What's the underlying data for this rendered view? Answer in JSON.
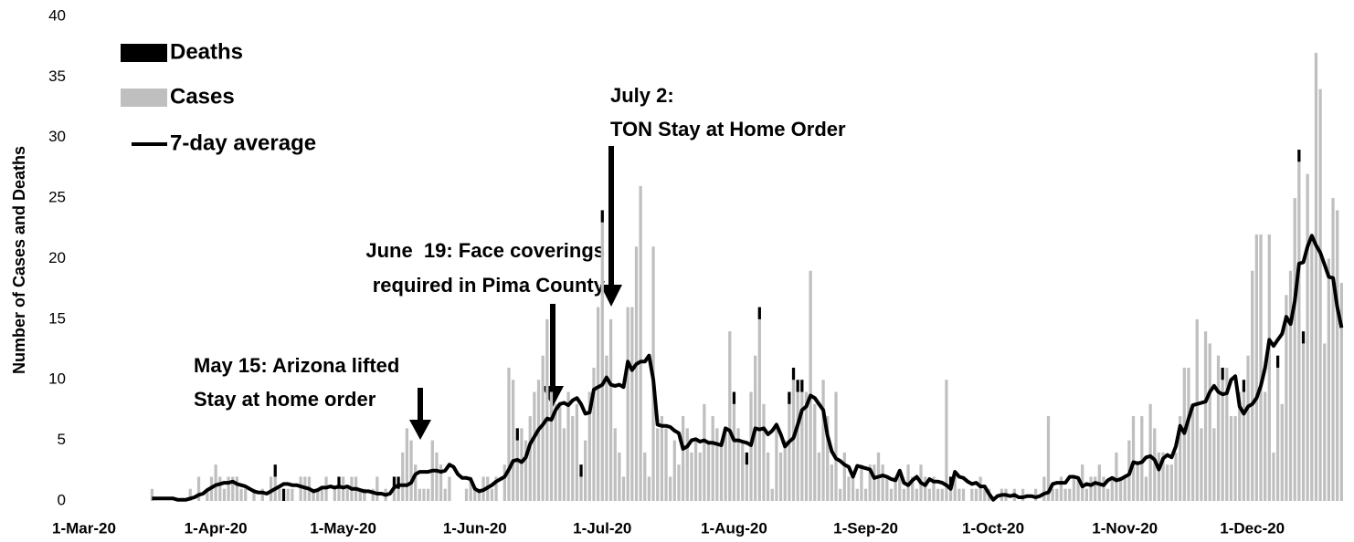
{
  "chart_data": {
    "type": "bar",
    "y_label": "Number of Cases and Deaths",
    "legend": "upper left",
    "ylim": [
      0,
      40
    ],
    "yticks": [
      0,
      5,
      10,
      15,
      20,
      25,
      30,
      35,
      40
    ],
    "xlim": [
      "1-Mar-20",
      "23-Dec-20"
    ],
    "xticks": [
      "1-Mar-20",
      "1-Apr-20",
      "1-May-20",
      "1-Jun-20",
      "1-Jul-20",
      "1-Aug-20",
      "1-Sep-20",
      "1-Oct-20",
      "1-Nov-20",
      "1-Dec-20"
    ],
    "annotations": [
      {
        "text": [
          "May 15: Arizona lifted",
          "Stay at home order"
        ]
      },
      {
        "text": [
          "June  19: Face coverings",
          "required in Pima County"
        ]
      },
      {
        "text": [
          "July 2:",
          "TON Stay at Home Order"
        ]
      }
    ],
    "x": [
      "17-Mar-20",
      "18-Mar-20",
      "19-Mar-20",
      "20-Mar-20",
      "21-Mar-20",
      "22-Mar-20",
      "23-Mar-20",
      "24-Mar-20",
      "25-Mar-20",
      "26-Mar-20",
      "27-Mar-20",
      "28-Mar-20",
      "29-Mar-20",
      "30-Mar-20",
      "31-Mar-20",
      "1-Apr-20",
      "2-Apr-20",
      "3-Apr-20",
      "4-Apr-20",
      "5-Apr-20",
      "6-Apr-20",
      "7-Apr-20",
      "8-Apr-20",
      "9-Apr-20",
      "10-Apr-20",
      "11-Apr-20",
      "12-Apr-20",
      "13-Apr-20",
      "14-Apr-20",
      "15-Apr-20",
      "16-Apr-20",
      "17-Apr-20",
      "18-Apr-20",
      "19-Apr-20",
      "20-Apr-20",
      "21-Apr-20",
      "22-Apr-20",
      "23-Apr-20",
      "24-Apr-20",
      "25-Apr-20",
      "26-Apr-20",
      "27-Apr-20",
      "28-Apr-20",
      "29-Apr-20",
      "30-Apr-20",
      "1-May-20",
      "2-May-20",
      "3-May-20",
      "4-May-20",
      "5-May-20",
      "6-May-20",
      "7-May-20",
      "8-May-20",
      "9-May-20",
      "10-May-20",
      "11-May-20",
      "12-May-20",
      "13-May-20",
      "14-May-20",
      "15-May-20",
      "16-May-20",
      "17-May-20",
      "18-May-20",
      "19-May-20",
      "20-May-20",
      "21-May-20",
      "22-May-20",
      "23-May-20",
      "24-May-20",
      "25-May-20",
      "26-May-20",
      "27-May-20",
      "28-May-20",
      "29-May-20",
      "30-May-20",
      "31-May-20",
      "1-Jun-20",
      "2-Jun-20",
      "3-Jun-20",
      "4-Jun-20",
      "5-Jun-20",
      "6-Jun-20",
      "7-Jun-20",
      "8-Jun-20",
      "9-Jun-20",
      "10-Jun-20",
      "11-Jun-20",
      "12-Jun-20",
      "13-Jun-20",
      "14-Jun-20",
      "15-Jun-20",
      "16-Jun-20",
      "17-Jun-20",
      "18-Jun-20",
      "19-Jun-20",
      "20-Jun-20",
      "21-Jun-20",
      "22-Jun-20",
      "23-Jun-20",
      "24-Jun-20",
      "25-Jun-20",
      "26-Jun-20",
      "27-Jun-20",
      "28-Jun-20",
      "29-Jun-20",
      "30-Jun-20",
      "1-Jul-20",
      "2-Jul-20",
      "3-Jul-20",
      "4-Jul-20",
      "5-Jul-20",
      "6-Jul-20",
      "7-Jul-20",
      "8-Jul-20",
      "9-Jul-20",
      "10-Jul-20",
      "11-Jul-20",
      "12-Jul-20",
      "13-Jul-20",
      "14-Jul-20",
      "15-Jul-20",
      "16-Jul-20",
      "17-Jul-20",
      "18-Jul-20",
      "19-Jul-20",
      "20-Jul-20",
      "21-Jul-20",
      "22-Jul-20",
      "23-Jul-20",
      "24-Jul-20",
      "25-Jul-20",
      "26-Jul-20",
      "27-Jul-20",
      "28-Jul-20",
      "29-Jul-20",
      "30-Jul-20",
      "31-Jul-20",
      "1-Aug-20",
      "2-Aug-20",
      "3-Aug-20",
      "4-Aug-20",
      "5-Aug-20",
      "6-Aug-20",
      "7-Aug-20",
      "8-Aug-20",
      "9-Aug-20",
      "10-Aug-20",
      "11-Aug-20",
      "12-Aug-20",
      "13-Aug-20",
      "14-Aug-20",
      "15-Aug-20",
      "16-Aug-20",
      "17-Aug-20",
      "18-Aug-20",
      "19-Aug-20",
      "20-Aug-20",
      "21-Aug-20",
      "22-Aug-20",
      "23-Aug-20",
      "24-Aug-20",
      "25-Aug-20",
      "26-Aug-20",
      "27-Aug-20",
      "28-Aug-20",
      "29-Aug-20",
      "30-Aug-20",
      "31-Aug-20",
      "1-Sep-20",
      "2-Sep-20",
      "3-Sep-20",
      "4-Sep-20",
      "5-Sep-20",
      "6-Sep-20",
      "7-Sep-20",
      "8-Sep-20",
      "9-Sep-20",
      "10-Sep-20",
      "11-Sep-20",
      "12-Sep-20",
      "13-Sep-20",
      "14-Sep-20",
      "15-Sep-20",
      "16-Sep-20",
      "17-Sep-20",
      "18-Sep-20",
      "19-Sep-20",
      "20-Sep-20",
      "21-Sep-20",
      "22-Sep-20",
      "23-Sep-20",
      "24-Sep-20",
      "25-Sep-20",
      "26-Sep-20",
      "27-Sep-20",
      "28-Sep-20",
      "29-Sep-20",
      "30-Sep-20",
      "1-Oct-20",
      "2-Oct-20",
      "3-Oct-20",
      "4-Oct-20",
      "5-Oct-20",
      "6-Oct-20",
      "7-Oct-20",
      "8-Oct-20",
      "9-Oct-20",
      "10-Oct-20",
      "11-Oct-20",
      "12-Oct-20",
      "13-Oct-20",
      "14-Oct-20",
      "15-Oct-20",
      "16-Oct-20",
      "17-Oct-20",
      "18-Oct-20",
      "19-Oct-20",
      "20-Oct-20",
      "21-Oct-20",
      "22-Oct-20",
      "23-Oct-20",
      "24-Oct-20",
      "25-Oct-20",
      "26-Oct-20",
      "27-Oct-20",
      "28-Oct-20",
      "29-Oct-20",
      "30-Oct-20",
      "31-Oct-20",
      "1-Nov-20",
      "2-Nov-20",
      "3-Nov-20",
      "4-Nov-20",
      "5-Nov-20",
      "6-Nov-20",
      "7-Nov-20",
      "8-Nov-20",
      "9-Nov-20",
      "10-Nov-20",
      "11-Nov-20",
      "12-Nov-20",
      "13-Nov-20",
      "14-Nov-20",
      "15-Nov-20",
      "16-Nov-20",
      "17-Nov-20",
      "18-Nov-20",
      "19-Nov-20",
      "20-Nov-20",
      "21-Nov-20",
      "22-Nov-20",
      "23-Nov-20",
      "24-Nov-20",
      "25-Nov-20",
      "26-Nov-20",
      "27-Nov-20",
      "28-Nov-20",
      "29-Nov-20",
      "30-Nov-20",
      "1-Dec-20",
      "2-Dec-20",
      "3-Dec-20",
      "4-Dec-20",
      "5-Dec-20",
      "6-Dec-20",
      "7-Dec-20",
      "8-Dec-20",
      "9-Dec-20",
      "10-Dec-20",
      "11-Dec-20",
      "12-Dec-20",
      "13-Dec-20",
      "14-Dec-20",
      "15-Dec-20",
      "16-Dec-20",
      "17-Dec-20",
      "18-Dec-20",
      "19-Dec-20",
      "20-Dec-20",
      "21-Dec-20",
      "22-Dec-20"
    ],
    "series": [
      {
        "name": "Deaths",
        "type": "bar",
        "color": "#000000",
        "values": [
          0,
          0,
          0,
          0,
          0,
          0,
          0,
          0,
          0,
          0,
          0,
          0,
          0,
          0,
          0,
          0,
          0,
          0,
          0,
          0,
          0,
          0,
          0,
          0,
          0,
          0,
          0,
          0,
          0,
          1,
          0,
          1,
          0,
          0,
          0,
          0,
          0,
          0,
          0,
          0,
          0,
          0,
          0,
          0,
          1,
          0,
          0,
          0,
          0,
          0,
          0,
          0,
          0,
          0,
          0,
          0,
          0,
          1,
          1,
          0,
          0,
          0,
          0,
          0,
          0,
          0,
          0,
          0,
          0,
          0,
          0,
          0,
          0,
          0,
          0,
          0,
          0,
          0,
          0,
          0,
          0,
          0,
          0,
          0,
          0,
          0,
          1,
          0,
          0,
          0,
          0,
          0,
          0,
          0,
          0,
          0,
          0,
          0,
          0,
          0,
          0,
          1,
          0,
          0,
          0,
          0,
          1,
          0,
          0,
          0,
          0,
          0,
          0,
          0,
          0,
          0,
          0,
          0,
          0,
          0,
          0,
          0,
          0,
          0,
          0,
          0,
          0,
          0,
          0,
          0,
          0,
          0,
          0,
          0,
          0,
          0,
          0,
          1,
          0,
          0,
          1,
          0,
          0,
          1,
          0,
          0,
          0,
          0,
          0,
          0,
          1,
          1,
          1,
          1,
          0,
          0,
          0,
          0,
          0,
          0,
          0,
          0,
          0,
          0,
          0,
          0,
          0,
          0,
          0,
          0,
          0,
          0,
          0,
          0,
          0,
          0,
          0,
          0,
          0,
          0,
          0,
          0,
          0,
          0,
          0,
          0,
          0,
          0,
          1,
          0,
          0,
          0,
          0,
          0,
          0,
          0,
          0,
          0,
          0,
          0,
          0,
          0,
          0,
          0,
          0,
          0,
          0,
          0,
          0,
          0,
          0,
          0,
          0,
          0,
          0,
          0,
          0,
          0,
          0,
          0,
          0,
          0,
          0,
          0,
          0,
          0,
          0,
          0,
          0,
          0,
          0,
          0,
          0,
          0,
          0,
          0,
          0,
          0,
          0,
          0,
          0,
          0,
          0,
          0,
          0,
          0,
          0,
          0,
          0,
          0,
          0,
          0,
          1,
          0,
          0,
          0,
          0,
          1,
          0,
          0,
          0,
          0,
          0,
          0,
          0,
          1,
          0,
          0,
          0,
          0,
          1,
          1,
          0,
          0,
          0,
          0,
          0,
          0,
          0,
          0,
          0
        ]
      },
      {
        "name": "Cases",
        "type": "bar",
        "color": "#bfbfbf",
        "values": [
          1,
          0,
          0,
          0,
          0,
          0,
          0,
          0,
          0,
          1,
          0,
          2,
          0,
          1,
          2,
          3,
          2,
          1,
          2,
          2,
          2,
          1,
          1,
          0,
          1,
          0,
          1,
          0,
          2,
          2,
          1,
          0,
          1,
          1,
          0,
          2,
          2,
          2,
          1,
          1,
          1,
          2,
          0,
          1,
          1,
          2,
          1,
          2,
          2,
          1,
          1,
          0,
          1,
          2,
          0,
          1,
          0,
          1,
          1,
          4,
          6,
          5,
          3,
          1,
          1,
          1,
          5,
          4,
          3,
          1,
          2,
          0,
          0,
          0,
          1,
          2,
          1,
          1,
          2,
          2,
          1,
          2,
          0,
          3,
          11,
          10,
          5,
          6,
          5,
          7,
          9,
          10,
          12,
          15,
          9,
          8,
          8,
          6,
          9,
          7,
          8,
          2,
          5,
          9,
          11,
          16,
          23,
          12,
          15,
          6,
          4,
          2,
          16,
          16,
          21,
          26,
          4,
          2,
          21,
          6,
          7,
          6,
          2,
          5,
          3,
          7,
          6,
          4,
          5,
          4,
          8,
          5,
          7,
          6,
          5,
          6,
          14,
          8,
          6,
          5,
          3,
          9,
          12,
          15,
          8,
          4,
          1,
          6,
          4,
          5,
          8,
          10,
          9,
          9,
          9,
          19,
          8,
          4,
          10,
          7,
          3,
          9,
          1,
          4,
          2,
          2,
          1,
          3,
          1,
          3,
          3,
          4,
          3,
          2,
          1,
          2,
          2,
          1,
          3,
          2,
          1,
          3,
          2,
          1,
          2,
          1,
          1,
          10,
          1,
          2,
          1,
          1,
          0,
          1,
          1,
          2,
          1,
          1,
          0,
          0,
          1,
          1,
          0,
          1,
          0,
          1,
          0,
          0,
          1,
          0,
          2,
          7,
          1,
          1,
          2,
          1,
          1,
          2,
          2,
          3,
          1,
          2,
          2,
          3,
          2,
          1,
          2,
          4,
          2,
          2,
          5,
          7,
          3,
          7,
          2,
          8,
          6,
          4,
          4,
          3,
          3,
          4,
          7,
          11,
          11,
          8,
          15,
          6,
          14,
          13,
          6,
          12,
          10,
          11,
          7,
          7,
          9,
          9,
          12,
          19,
          22,
          22,
          9,
          22,
          4,
          11,
          8,
          17,
          19,
          25,
          28,
          13,
          27,
          22,
          37,
          34,
          13,
          20,
          25,
          24,
          18
        ]
      },
      {
        "name": "7-day average",
        "type": "line",
        "color": "#000000",
        "values": [
          0.2,
          0.2,
          0.2,
          0.2,
          0.2,
          0.2,
          0.1,
          0.1,
          0.1,
          0.2,
          0.3,
          0.5,
          0.6,
          0.9,
          1.1,
          1.3,
          1.4,
          1.5,
          1.5,
          1.6,
          1.4,
          1.3,
          1.2,
          1.0,
          0.8,
          0.7,
          0.7,
          0.6,
          0.8,
          1.0,
          1.2,
          1.4,
          1.4,
          1.3,
          1.3,
          1.2,
          1.1,
          1.0,
          0.8,
          0.9,
          1.1,
          1.1,
          1.2,
          1.1,
          1.2,
          1.1,
          1.2,
          1.0,
          1.0,
          0.9,
          0.8,
          0.8,
          0.7,
          0.6,
          0.6,
          0.5,
          0.6,
          1.1,
          1.3,
          1.3,
          1.3,
          1.5,
          2.2,
          2.4,
          2.4,
          2.4,
          2.5,
          2.5,
          2.4,
          2.5,
          3.0,
          2.8,
          2.2,
          1.9,
          1.9,
          1.8,
          1.0,
          0.8,
          0.9,
          1.1,
          1.3,
          1.6,
          1.8,
          2.0,
          2.6,
          3.3,
          3.4,
          3.2,
          3.6,
          4.7,
          5.3,
          5.9,
          6.3,
          6.8,
          6.7,
          7.5,
          8.0,
          8.1,
          7.9,
          8.3,
          8.5,
          8.0,
          7.2,
          7.3,
          9.2,
          9.4,
          9.6,
          10.2,
          9.6,
          9.5,
          9.6,
          9.4,
          11.5,
          10.8,
          11.3,
          11.5,
          11.5,
          12.0,
          10.0,
          6.3,
          6.2,
          6.2,
          6.1,
          5.8,
          5.6,
          4.3,
          4.5,
          5.0,
          5.1,
          4.9,
          5.0,
          4.8,
          4.8,
          4.7,
          4.6,
          6.0,
          5.8,
          5.0,
          5.0,
          4.9,
          4.8,
          4.6,
          6.0,
          5.9,
          6.0,
          5.5,
          5.8,
          6.3,
          5.5,
          4.5,
          4.9,
          5.2,
          6.3,
          7.5,
          7.8,
          8.7,
          8.5,
          8.0,
          7.5,
          5.4,
          4.1,
          3.5,
          3.3,
          3.0,
          2.8,
          2.0,
          2.9,
          2.8,
          2.7,
          2.6,
          1.9,
          2.0,
          2.1,
          2.0,
          1.8,
          1.7,
          2.5,
          1.5,
          1.3,
          1.7,
          2.0,
          1.5,
          1.3,
          1.8,
          1.6,
          1.6,
          1.5,
          1.3,
          1.0,
          2.4,
          2.0,
          1.9,
          1.6,
          1.4,
          1.5,
          1.2,
          1.2,
          0.6,
          0.1,
          0.4,
          0.5,
          0.5,
          0.4,
          0.5,
          0.3,
          0.3,
          0.4,
          0.4,
          0.3,
          0.4,
          0.6,
          0.7,
          1.4,
          1.5,
          1.5,
          1.5,
          2.0,
          2.0,
          1.9,
          1.2,
          1.4,
          1.3,
          1.5,
          1.4,
          1.3,
          1.7,
          1.9,
          1.7,
          1.8,
          2.0,
          2.2,
          3.2,
          3.1,
          3.2,
          3.6,
          3.7,
          3.4,
          2.6,
          3.5,
          3.8,
          3.6,
          4.5,
          6.2,
          5.6,
          6.8,
          7.9,
          8.0,
          8.1,
          8.2,
          9.0,
          9.5,
          9.0,
          8.8,
          8.9,
          10.0,
          10.3,
          7.8,
          7.2,
          7.8,
          8.0,
          8.5,
          9.5,
          11.0,
          13.3,
          12.8,
          13.3,
          13.8,
          15.2,
          14.6,
          16.5,
          19.6,
          19.7,
          21.0,
          21.9,
          21.1,
          20.5,
          19.5,
          18.5,
          18.4,
          16.0,
          14.3
        ]
      }
    ]
  }
}
